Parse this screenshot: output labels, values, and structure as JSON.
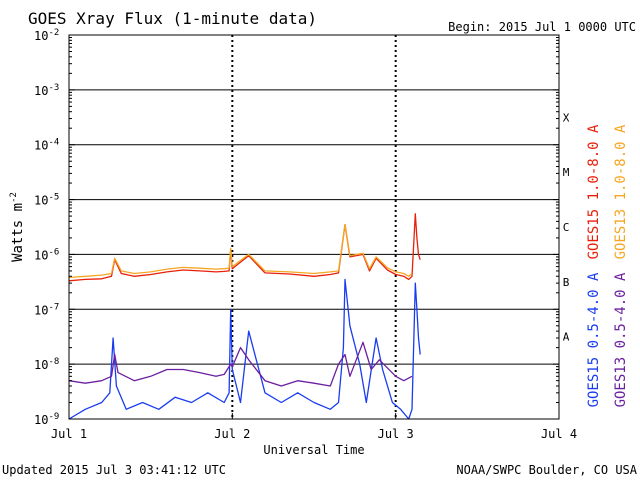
{
  "chart_data": {
    "type": "line",
    "title": "GOES Xray Flux (1-minute data)",
    "begin_label": "Begin:  2015 Jul 1 0000 UTC",
    "xlabel": "Universal Time",
    "ylabel": "Watts m",
    "ylabel_exponent": "-2",
    "y_scale": "log",
    "ylim": [
      1e-09,
      0.01
    ],
    "xlim": [
      0,
      3
    ],
    "x_ticks": [
      {
        "value": 0,
        "label": "Jul 1"
      },
      {
        "value": 1,
        "label": "Jul 2"
      },
      {
        "value": 2,
        "label": "Jul 3"
      },
      {
        "value": 3,
        "label": "Jul 4"
      }
    ],
    "y_ticks": [
      {
        "value": 0.01,
        "base": "10",
        "exp": "-2"
      },
      {
        "value": 0.001,
        "base": "10",
        "exp": "-3"
      },
      {
        "value": 0.0001,
        "base": "10",
        "exp": "-4"
      },
      {
        "value": 1e-05,
        "base": "10",
        "exp": "-5"
      },
      {
        "value": 1e-06,
        "base": "10",
        "exp": "-6"
      },
      {
        "value": 1e-07,
        "base": "10",
        "exp": "-7"
      },
      {
        "value": 1e-08,
        "base": "10",
        "exp": "-8"
      },
      {
        "value": 1e-09,
        "base": "10",
        "exp": "-9"
      }
    ],
    "flare_classes": [
      {
        "label": "X",
        "value": 0.000316
      },
      {
        "label": "M",
        "value": 3.16e-05
      },
      {
        "label": "C",
        "value": 3.16e-06
      },
      {
        "label": "B",
        "value": 3.16e-07
      },
      {
        "label": "A",
        "value": 3.16e-08
      }
    ],
    "grid": "horizontal lines at each decade from 1e-8 to 1e-3; dashed vertical markers at Jul 2 and Jul 3",
    "series": [
      {
        "name": "GOES15 1.0-8.0 A",
        "color": "#e8200a",
        "x": [
          0,
          0.1,
          0.2,
          0.26,
          0.28,
          0.32,
          0.4,
          0.5,
          0.6,
          0.7,
          0.8,
          0.9,
          0.95,
          0.98,
          0.99,
          1.0,
          1.03,
          1.1,
          1.2,
          1.35,
          1.5,
          1.6,
          1.65,
          1.69,
          1.72,
          1.8,
          1.84,
          1.88,
          1.95,
          2.0,
          2.05,
          2.08,
          2.1,
          2.12,
          2.13,
          2.14,
          2.15
        ],
        "y": [
          3.3e-07,
          3.5e-07,
          3.6e-07,
          4e-07,
          8e-07,
          4.5e-07,
          4e-07,
          4.3e-07,
          4.8e-07,
          5.2e-07,
          5e-07,
          4.8e-07,
          4.9e-07,
          5e-07,
          1.2e-06,
          5.5e-07,
          6.5e-07,
          9.5e-07,
          4.6e-07,
          4.4e-07,
          4e-07,
          4.3e-07,
          4.6e-07,
          3.5e-06,
          9e-07,
          1e-06,
          5e-07,
          8.5e-07,
          5.2e-07,
          4.3e-07,
          4e-07,
          3.5e-07,
          4e-07,
          5.5e-06,
          2e-06,
          1e-06,
          8e-07
        ]
      },
      {
        "name": "GOES13 1.0-8.0 A",
        "color": "#f5a623",
        "x": [
          0,
          0.1,
          0.2,
          0.26,
          0.28,
          0.32,
          0.4,
          0.5,
          0.6,
          0.7,
          0.8,
          0.9,
          0.95,
          0.98,
          0.99,
          1.0,
          1.03,
          1.1,
          1.2,
          1.35,
          1.5,
          1.6,
          1.65,
          1.69,
          1.72,
          1.8,
          1.84,
          1.88,
          1.95,
          2.0,
          2.05,
          2.08,
          2.1
        ],
        "y": [
          3.8e-07,
          4e-07,
          4.2e-07,
          4.5e-07,
          8.5e-07,
          5e-07,
          4.5e-07,
          4.8e-07,
          5.4e-07,
          5.8e-07,
          5.6e-07,
          5.4e-07,
          5.5e-07,
          5.6e-07,
          1.3e-06,
          6e-07,
          7e-07,
          1e-06,
          5e-07,
          4.8e-07,
          4.5e-07,
          4.8e-07,
          5e-07,
          3.5e-06,
          9.5e-07,
          1.05e-06,
          5.5e-07,
          9e-07,
          5.7e-07,
          4.8e-07,
          4.5e-07,
          4e-07,
          4.5e-07
        ]
      },
      {
        "name": "GOES15 0.5-4.0 A",
        "color": "#1a3cf0",
        "x": [
          0,
          0.1,
          0.2,
          0.25,
          0.27,
          0.29,
          0.35,
          0.45,
          0.55,
          0.65,
          0.75,
          0.85,
          0.95,
          0.98,
          0.99,
          1.0,
          1.05,
          1.1,
          1.2,
          1.3,
          1.4,
          1.5,
          1.6,
          1.65,
          1.68,
          1.69,
          1.72,
          1.78,
          1.82,
          1.88,
          1.92,
          1.98,
          2.03,
          2.08,
          2.1,
          2.12,
          2.13,
          2.14,
          2.15
        ],
        "y": [
          1e-09,
          1.5e-09,
          2e-09,
          3e-09,
          3e-08,
          4e-09,
          1.5e-09,
          2e-09,
          1.5e-09,
          2.5e-09,
          2e-09,
          3e-09,
          2e-09,
          3e-09,
          1e-07,
          8e-09,
          2e-09,
          4e-08,
          3e-09,
          2e-09,
          3e-09,
          2e-09,
          1.5e-09,
          2e-09,
          2e-08,
          3.5e-07,
          5e-08,
          1e-08,
          2e-09,
          3e-08,
          8e-09,
          2e-09,
          1.5e-09,
          1e-09,
          1.5e-09,
          3e-07,
          1e-07,
          3e-08,
          1.5e-08
        ]
      },
      {
        "name": "GOES13 0.5-4.0 A",
        "color": "#6a1fa0",
        "x": [
          0,
          0.1,
          0.2,
          0.26,
          0.28,
          0.3,
          0.4,
          0.5,
          0.6,
          0.7,
          0.8,
          0.9,
          0.95,
          0.99,
          1.0,
          1.05,
          1.1,
          1.2,
          1.3,
          1.4,
          1.5,
          1.6,
          1.65,
          1.69,
          1.72,
          1.8,
          1.85,
          1.9,
          2.0,
          2.05,
          2.1
        ],
        "y": [
          5e-09,
          4.5e-09,
          5e-09,
          6e-09,
          1.5e-08,
          7e-09,
          5e-09,
          6e-09,
          8e-09,
          8e-09,
          7e-09,
          6e-09,
          6.5e-09,
          1e-08,
          9e-09,
          2e-08,
          1.2e-08,
          5e-09,
          4e-09,
          5e-09,
          4.5e-09,
          4e-09,
          1e-08,
          1.5e-08,
          6e-09,
          2.5e-08,
          8e-09,
          1.2e-08,
          6e-09,
          5e-09,
          6e-09
        ]
      }
    ]
  },
  "footer": {
    "updated": "Updated 2015 Jul  3 03:41:12 UTC",
    "source": "NOAA/SWPC Boulder, CO USA"
  }
}
